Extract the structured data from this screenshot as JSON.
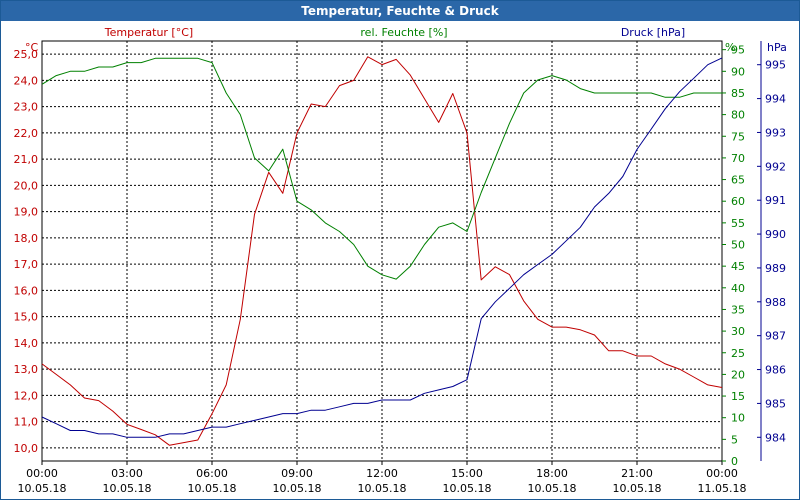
{
  "window": {
    "title": "Temperatur, Feuchte & Druck"
  },
  "colors": {
    "temperature": "#c00000",
    "humidity": "#008000",
    "pressure": "#000090",
    "grid": "#000000",
    "title_bar": "#2b67a8"
  },
  "chart_data": {
    "type": "line",
    "title": "Temperatur, Feuchte & Druck",
    "x": [
      "00:00",
      "00:30",
      "01:00",
      "01:30",
      "02:00",
      "02:30",
      "03:00",
      "03:30",
      "04:00",
      "04:30",
      "05:00",
      "05:30",
      "06:00",
      "06:30",
      "07:00",
      "07:30",
      "08:00",
      "08:30",
      "09:00",
      "09:30",
      "10:00",
      "10:30",
      "11:00",
      "11:30",
      "12:00",
      "12:30",
      "13:00",
      "13:30",
      "14:00",
      "14:30",
      "15:00",
      "15:30",
      "16:00",
      "16:30",
      "17:00",
      "17:30",
      "18:00",
      "18:30",
      "19:00",
      "19:30",
      "20:00",
      "20:30",
      "21:00",
      "21:30",
      "22:00",
      "22:30",
      "23:00",
      "23:30",
      "00:00"
    ],
    "xticks": [
      {
        "time": "00:00",
        "date": "10.05.18"
      },
      {
        "time": "03:00",
        "date": "10.05.18"
      },
      {
        "time": "06:00",
        "date": "10.05.18"
      },
      {
        "time": "09:00",
        "date": "10.05.18"
      },
      {
        "time": "12:00",
        "date": "10.05.18"
      },
      {
        "time": "15:00",
        "date": "10.05.18"
      },
      {
        "time": "18:00",
        "date": "10.05.18"
      },
      {
        "time": "21:00",
        "date": "10.05.18"
      },
      {
        "time": "00:00",
        "date": "11.05.18"
      }
    ],
    "axes": {
      "temperature": {
        "label": "Temperatur [°C]",
        "unit": "°C",
        "min": 9.5,
        "max": 25.5,
        "ticks": [
          "10,0",
          "11,0",
          "12,0",
          "13,0",
          "14,0",
          "15,0",
          "16,0",
          "17,0",
          "18,0",
          "19,0",
          "20,0",
          "21,0",
          "22,0",
          "23,0",
          "24,0",
          "25,0"
        ]
      },
      "humidity": {
        "label": "rel. Feuchte [%]",
        "unit": "%",
        "min": 0,
        "max": 97,
        "ticks": [
          "0",
          "5",
          "10",
          "15",
          "20",
          "25",
          "30",
          "35",
          "40",
          "45",
          "50",
          "55",
          "60",
          "65",
          "70",
          "75",
          "80",
          "85",
          "90",
          "95"
        ]
      },
      "pressure": {
        "label": "Druck [hPa]",
        "unit": "hPa",
        "min": 983.3,
        "max": 995.7,
        "ticks": [
          "984",
          "985",
          "986",
          "987",
          "988",
          "989",
          "990",
          "991",
          "992",
          "993",
          "994",
          "995"
        ]
      }
    },
    "series": [
      {
        "name": "Temperatur [°C]",
        "axis": "temperature",
        "values": [
          13.2,
          12.8,
          12.4,
          11.9,
          11.8,
          11.4,
          10.9,
          10.7,
          10.5,
          10.1,
          10.2,
          10.3,
          11.3,
          12.4,
          14.9,
          18.9,
          20.5,
          19.7,
          22.0,
          23.1,
          23.0,
          23.8,
          24.0,
          24.9,
          24.6,
          24.8,
          24.2,
          23.3,
          22.4,
          23.5,
          22.0,
          16.4,
          16.9,
          16.6,
          15.6,
          14.9,
          14.6,
          14.6,
          14.5,
          14.3,
          13.7,
          13.7,
          13.5,
          13.5,
          13.2,
          13.0,
          12.7,
          12.4,
          12.3
        ]
      },
      {
        "name": "rel. Feuchte [%]",
        "axis": "humidity",
        "values": [
          87,
          89,
          90,
          90,
          91,
          91,
          92,
          92,
          93,
          93,
          93,
          93,
          92,
          85,
          80,
          70,
          67,
          72,
          60,
          58,
          55,
          53,
          50,
          45,
          43,
          42,
          45,
          50,
          54,
          55,
          53,
          62,
          70,
          78,
          85,
          88,
          89,
          88,
          86,
          85,
          85,
          85,
          85,
          85,
          84,
          84,
          85,
          85,
          85
        ]
      },
      {
        "name": "Druck [hPa]",
        "axis": "pressure",
        "values": [
          984.6,
          984.4,
          984.2,
          984.2,
          984.1,
          984.1,
          984.0,
          984.0,
          984.0,
          984.1,
          984.1,
          984.2,
          984.3,
          984.3,
          984.4,
          984.5,
          984.6,
          984.7,
          984.7,
          984.8,
          984.8,
          984.9,
          985.0,
          985.0,
          985.1,
          985.1,
          985.1,
          985.3,
          985.4,
          985.5,
          985.7,
          987.5,
          988.0,
          988.4,
          988.8,
          989.1,
          989.4,
          989.8,
          990.2,
          990.8,
          991.2,
          991.7,
          992.5,
          993.1,
          993.7,
          994.2,
          994.6,
          995.0,
          995.2
        ]
      }
    ]
  }
}
